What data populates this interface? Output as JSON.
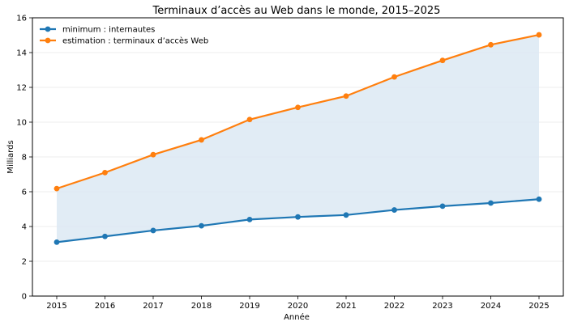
{
  "chart_data": {
    "type": "line",
    "title": "Terminaux d’accès au Web dans le monde, 2015–2025",
    "xlabel": "Année",
    "ylabel": "Milliards",
    "x": [
      2015,
      2016,
      2017,
      2018,
      2019,
      2020,
      2021,
      2022,
      2023,
      2024,
      2025
    ],
    "ylim": [
      0,
      16
    ],
    "yticks": [
      0,
      2,
      4,
      6,
      8,
      10,
      12,
      14,
      16
    ],
    "grid": "horizontal",
    "legend": "top-left",
    "fill_between": true,
    "fill_color": "#dce9f3",
    "series": [
      {
        "name": "minimum : internautes",
        "color": "#1f77b4",
        "values": [
          3.1,
          3.43,
          3.77,
          4.04,
          4.4,
          4.55,
          4.66,
          4.95,
          5.17,
          5.35,
          5.57
        ]
      },
      {
        "name": "estimation : terminaux d’accès Web",
        "color": "#ff7f0e",
        "values": [
          6.18,
          7.1,
          8.13,
          8.98,
          10.15,
          10.85,
          11.5,
          12.6,
          13.55,
          14.45,
          15.02
        ]
      }
    ]
  }
}
